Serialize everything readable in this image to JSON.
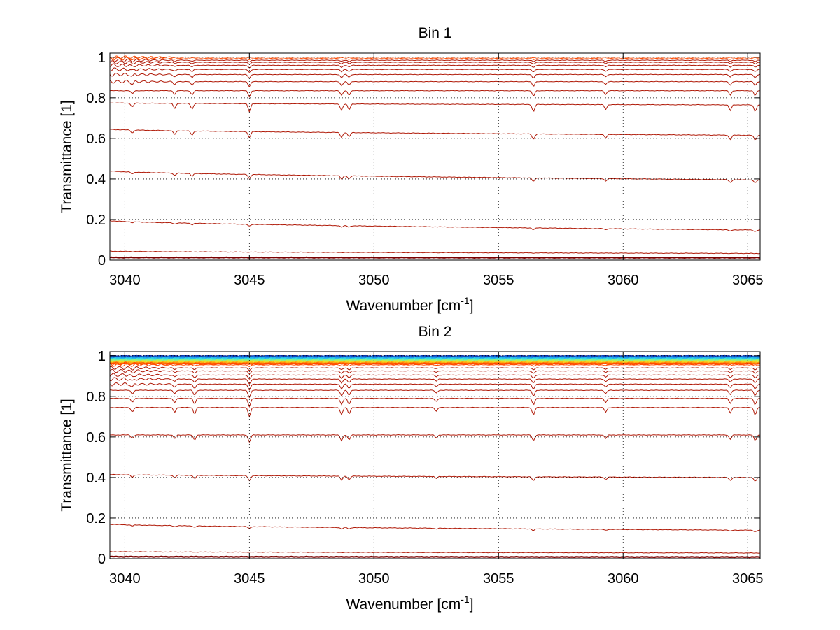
{
  "colors": {
    "background": "#ffffff",
    "axis": "#000000",
    "grid": "#000000",
    "series_main": "#b01a08",
    "series_top_orange": "#ff4a00",
    "series_bottom_dark": "#7a0000",
    "colormap": [
      "#0a2a9e",
      "#1060d8",
      "#1ea0f0",
      "#30d8e8",
      "#60f0b0",
      "#b0f060",
      "#f0e020",
      "#ff9a10",
      "#ff4a00"
    ]
  },
  "chart_data": [
    {
      "type": "line",
      "title": "Bin 1",
      "xlabel": "Wavenumber [cm",
      "xlabel_sup": "-1",
      "xlabel_close": "]",
      "ylabel": "Transmittance [1]",
      "xlim": [
        3039.4,
        3065.5
      ],
      "ylim": [
        0,
        1.02
      ],
      "xticks": [
        3040,
        3045,
        3050,
        3055,
        3060,
        3065
      ],
      "xtick_labels": [
        "3040",
        "3045",
        "3050",
        "3055",
        "3060",
        "3065"
      ],
      "yticks": [
        0,
        0.2,
        0.4,
        0.6,
        0.8,
        1
      ],
      "ytick_labels": [
        "0",
        "0.2",
        "0.4",
        "0.6",
        "0.8",
        "1"
      ],
      "grid": true,
      "absorption_lines": [
        {
          "x": 3040.3,
          "depth": 0.5
        },
        {
          "x": 3042.0,
          "depth": 0.6
        },
        {
          "x": 3042.7,
          "depth": 0.7
        },
        {
          "x": 3045.0,
          "depth": 1.0
        },
        {
          "x": 3048.7,
          "depth": 0.8
        },
        {
          "x": 3049.0,
          "depth": 0.7
        },
        {
          "x": 3056.4,
          "depth": 0.9
        },
        {
          "x": 3059.3,
          "depth": 0.6
        },
        {
          "x": 3064.3,
          "depth": 0.7
        },
        {
          "x": 3065.3,
          "depth": 0.8
        }
      ],
      "series": [
        {
          "start": 0.013,
          "end": 0.012,
          "depth": 0.0
        },
        {
          "start": 0.044,
          "end": 0.033,
          "depth": 0.001
        },
        {
          "start": 0.195,
          "end": 0.148,
          "depth": 0.01
        },
        {
          "start": 0.44,
          "end": 0.395,
          "depth": 0.02
        },
        {
          "start": 0.645,
          "end": 0.615,
          "depth": 0.03
        },
        {
          "start": 0.775,
          "end": 0.765,
          "depth": 0.04
        },
        {
          "start": 0.835,
          "end": 0.835,
          "depth": 0.03
        },
        {
          "start": 0.88,
          "end": 0.88,
          "depth": 0.025
        },
        {
          "start": 0.915,
          "end": 0.915,
          "depth": 0.02
        },
        {
          "start": 0.94,
          "end": 0.94,
          "depth": 0.015
        },
        {
          "start": 0.96,
          "end": 0.96,
          "depth": 0.012
        },
        {
          "start": 0.975,
          "end": 0.975,
          "depth": 0.01
        },
        {
          "start": 0.985,
          "end": 0.985,
          "depth": 0.008
        },
        {
          "start": 0.993,
          "end": 0.993,
          "depth": 0.005
        },
        {
          "start": 1.0,
          "end": 1.0,
          "depth": 0.002
        }
      ]
    },
    {
      "type": "line",
      "title": "Bin 2",
      "xlabel": "Wavenumber [cm",
      "xlabel_sup": "-1",
      "xlabel_close": "]",
      "ylabel": "Transmittance [1]",
      "xlim": [
        3039.4,
        3065.5
      ],
      "ylim": [
        0,
        1.02
      ],
      "xticks": [
        3040,
        3045,
        3050,
        3055,
        3060,
        3065
      ],
      "xtick_labels": [
        "3040",
        "3045",
        "3050",
        "3055",
        "3060",
        "3065"
      ],
      "yticks": [
        0,
        0.2,
        0.4,
        0.6,
        0.8,
        1
      ],
      "ytick_labels": [
        "0",
        "0.2",
        "0.4",
        "0.6",
        "0.8",
        "1"
      ],
      "grid": true,
      "absorption_lines": [
        {
          "x": 3040.3,
          "depth": 0.5
        },
        {
          "x": 3042.0,
          "depth": 0.5
        },
        {
          "x": 3042.8,
          "depth": 0.7
        },
        {
          "x": 3045.0,
          "depth": 1.0
        },
        {
          "x": 3048.7,
          "depth": 0.8
        },
        {
          "x": 3049.0,
          "depth": 0.7
        },
        {
          "x": 3052.5,
          "depth": 0.4
        },
        {
          "x": 3056.4,
          "depth": 0.8
        },
        {
          "x": 3059.3,
          "depth": 0.5
        },
        {
          "x": 3064.3,
          "depth": 0.6
        },
        {
          "x": 3065.3,
          "depth": 0.8
        }
      ],
      "top_band": {
        "from": 0.96,
        "to": 1.0
      },
      "series": [
        {
          "start": 0.01,
          "end": 0.008,
          "depth": 0.0
        },
        {
          "start": 0.035,
          "end": 0.028,
          "depth": 0.001
        },
        {
          "start": 0.17,
          "end": 0.14,
          "depth": 0.01
        },
        {
          "start": 0.415,
          "end": 0.4,
          "depth": 0.025
        },
        {
          "start": 0.61,
          "end": 0.61,
          "depth": 0.035
        },
        {
          "start": 0.745,
          "end": 0.745,
          "depth": 0.045
        },
        {
          "start": 0.79,
          "end": 0.79,
          "depth": 0.04
        },
        {
          "start": 0.83,
          "end": 0.83,
          "depth": 0.035
        },
        {
          "start": 0.86,
          "end": 0.86,
          "depth": 0.03
        },
        {
          "start": 0.885,
          "end": 0.885,
          "depth": 0.025
        },
        {
          "start": 0.905,
          "end": 0.905,
          "depth": 0.02
        },
        {
          "start": 0.925,
          "end": 0.925,
          "depth": 0.015
        },
        {
          "start": 0.94,
          "end": 0.94,
          "depth": 0.012
        },
        {
          "start": 0.955,
          "end": 0.955,
          "depth": 0.008
        },
        {
          "start": 0.962,
          "end": 0.962,
          "depth": 0.005
        }
      ]
    }
  ]
}
